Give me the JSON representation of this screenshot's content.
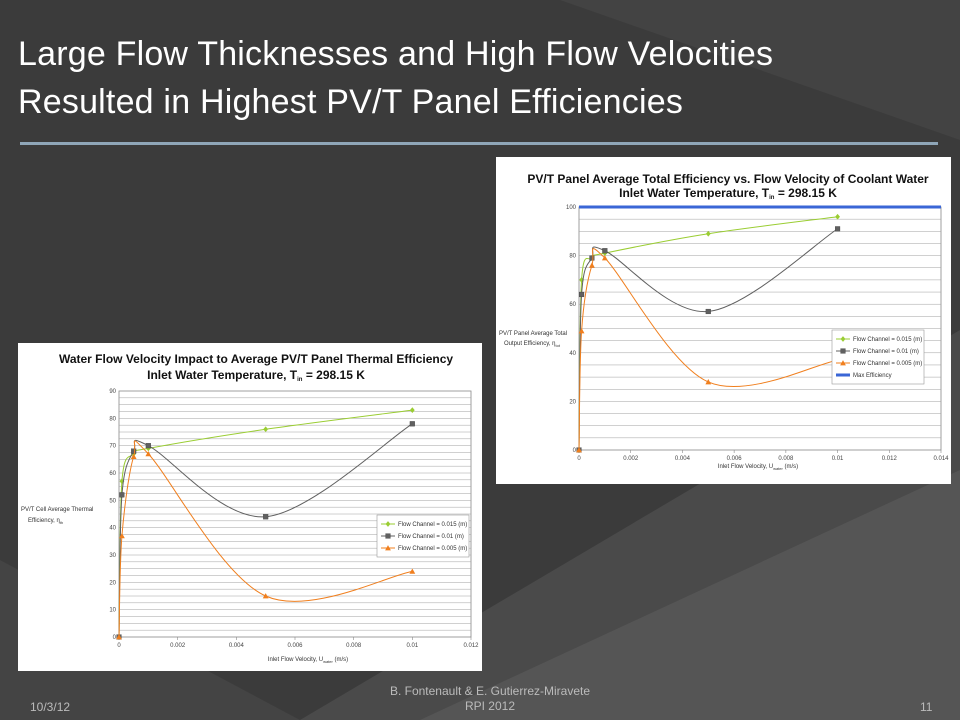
{
  "slide": {
    "title_line1": "Large Flow Thicknesses and High Flow Velocities",
    "title_line2": "Resulted in Highest PV/T Panel Efficiencies",
    "footer_date": "10/3/12",
    "footer_author": "B. Fontenault & E. Gutierrez-Miravete",
    "footer_org": "RPI 2012",
    "footer_page": "11"
  },
  "colors": {
    "series_015": "#9acd32",
    "series_01": "#606060",
    "series_005": "#f07f1e",
    "max_efficiency": "#3a66d6"
  },
  "chart_data": [
    {
      "type": "line",
      "title_line1": "PV/T Panel Average Total Efficiency vs. Flow Velocity of Coolant Water",
      "title_line2": "Inlet Water Temperature, T",
      "title_sub": "in",
      "title_tail": " = 298.15 K",
      "ylabel_line1": "PV/T Panel Average Total",
      "ylabel_line2": "Output Efficiency, η",
      "ylabel_sub": "tot",
      "xlabel": "Inlet Flow Velocity, U",
      "xlabel_sub": "water",
      "xlabel_tail": " (m/s)",
      "xlim": [
        0,
        0.014
      ],
      "ylim": [
        0,
        100
      ],
      "x_ticks": [
        "0",
        "0.002",
        "0.004",
        "0.006",
        "0.008",
        "0.01",
        "0.012",
        "0.014"
      ],
      "y_ticks": [
        "0",
        "20",
        "40",
        "60",
        "80",
        "100"
      ],
      "grid": true,
      "legend_position": "right-middle",
      "series": [
        {
          "name": "Flow Channel = 0.015 (m)",
          "marker": "diamond",
          "color_key": "series_015",
          "x": [
            0,
            0.0001,
            0.0005,
            0.001,
            0.005,
            0.01
          ],
          "y": [
            0,
            70,
            79,
            81,
            89,
            96
          ]
        },
        {
          "name": "Flow Channel = 0.01 (m)",
          "marker": "square",
          "color_key": "series_01",
          "x": [
            0,
            0.0001,
            0.0005,
            0.001,
            0.005,
            0.01
          ],
          "y": [
            0,
            64,
            79,
            82,
            57,
            91
          ]
        },
        {
          "name": "Flow Channel = 0.005 (m)",
          "marker": "triangle",
          "color_key": "series_005",
          "x": [
            0,
            0.0001,
            0.0005,
            0.001,
            0.005,
            0.01
          ],
          "y": [
            0,
            49,
            76,
            79,
            28,
            37
          ]
        },
        {
          "name": "Max Efficiency",
          "marker": "none",
          "color_key": "max_efficiency",
          "line_width": 3,
          "x": [
            0,
            0.014
          ],
          "y": [
            100,
            100
          ]
        }
      ]
    },
    {
      "type": "line",
      "title_line1": "Water Flow Velocity Impact to Average PV/T Panel Thermal Efficiency",
      "title_line2": "Inlet Water Temperature, T",
      "title_sub": "in",
      "title_tail": " = 298.15 K",
      "ylabel_line1": "PV/T Cell Average Thermal",
      "ylabel_line2": "Efficiency, η",
      "ylabel_sub": "th",
      "xlabel": "Inlet Flow Velocity, U",
      "xlabel_sub": "water",
      "xlabel_tail": " (m/s)",
      "xlim": [
        0,
        0.012
      ],
      "ylim": [
        0,
        90
      ],
      "x_ticks": [
        "0",
        "0.002",
        "0.004",
        "0.006",
        "0.008",
        "0.01",
        "0.012"
      ],
      "y_ticks": [
        "0",
        "10",
        "20",
        "30",
        "40",
        "50",
        "60",
        "70",
        "80",
        "90"
      ],
      "grid": true,
      "legend_position": "right-lower",
      "series": [
        {
          "name": "Flow Channel = 0.015 (m)",
          "marker": "diamond",
          "color_key": "series_015",
          "x": [
            0,
            0.0001,
            0.0005,
            0.001,
            0.005,
            0.01
          ],
          "y": [
            0,
            57,
            67,
            69,
            76,
            83
          ]
        },
        {
          "name": "Flow Channel = 0.01 (m)",
          "marker": "square",
          "color_key": "series_01",
          "x": [
            0,
            0.0001,
            0.0005,
            0.001,
            0.005,
            0.01
          ],
          "y": [
            0,
            52,
            68,
            70,
            44,
            78
          ]
        },
        {
          "name": "Flow Channel = 0.005 (m)",
          "marker": "triangle",
          "color_key": "series_005",
          "x": [
            0,
            0.0001,
            0.0005,
            0.001,
            0.005,
            0.01
          ],
          "y": [
            0,
            37,
            66,
            67,
            15,
            24
          ]
        }
      ]
    }
  ]
}
